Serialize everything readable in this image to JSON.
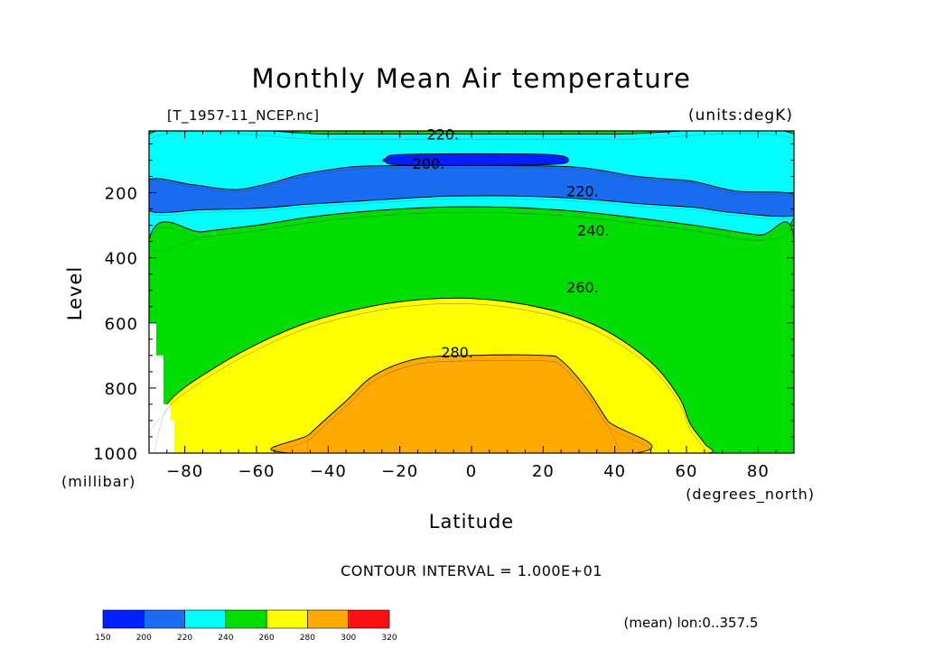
{
  "chart_data": {
    "type": "contour",
    "title": "Monthly Mean Air temperature",
    "subtitle_left": "[T_1957-11_NCEP.nc]",
    "units_label": "(units:degK)",
    "xlabel": "Latitude",
    "x_units": "(degrees_north)",
    "ylabel": "Level",
    "y_units": "(millibar)",
    "xlim": [
      -90,
      90
    ],
    "ylim": [
      1000,
      10
    ],
    "y_inverted": true,
    "x_ticks": [
      -80,
      -60,
      -40,
      -20,
      0,
      20,
      40,
      60,
      80
    ],
    "x_tick_labels": [
      "−80",
      "−60",
      "−40",
      "−20",
      "0",
      "20",
      "40",
      "60",
      "80"
    ],
    "y_ticks": [
      200,
      400,
      600,
      800,
      1000
    ],
    "y_tick_labels": [
      "200",
      "400",
      "600",
      "800",
      "1000"
    ],
    "contour_interval_text": "CONTOUR INTERVAL = 1.000E+01",
    "footnote": "(mean) lon:0..357.5",
    "colorbar": {
      "levels": [
        150,
        200,
        220,
        240,
        260,
        280,
        300,
        320
      ],
      "colors": [
        "#0020ff",
        "#1a6cf0",
        "#00ffff",
        "#00dd00",
        "#ffff00",
        "#ffaa00",
        "#ff1010"
      ]
    },
    "fill_bands": [
      {
        "level_min": 150,
        "level_max": 200,
        "color": "#0020ff",
        "boundary": [
          [
            -24,
            95
          ],
          [
            -18,
            82
          ],
          [
            20,
            82
          ],
          [
            27,
            100
          ],
          [
            20,
            114
          ],
          [
            -18,
            115
          ],
          [
            -24,
            105
          ]
        ]
      },
      {
        "level_min": 200,
        "level_max": 220,
        "color": "#1a6cf0",
        "boundary": [
          [
            -90,
            160
          ],
          [
            -78,
            175
          ],
          [
            -66,
            190
          ],
          [
            -56,
            170
          ],
          [
            -48,
            145
          ],
          [
            -40,
            130
          ],
          [
            -30,
            118
          ],
          [
            -10,
            117
          ],
          [
            10,
            117
          ],
          [
            30,
            122
          ],
          [
            45,
            148
          ],
          [
            55,
            158
          ],
          [
            62,
            165
          ],
          [
            74,
            195
          ],
          [
            90,
            205
          ],
          [
            90,
            270
          ],
          [
            72,
            260
          ],
          [
            62,
            245
          ],
          [
            48,
            235
          ],
          [
            38,
            225
          ],
          [
            25,
            215
          ],
          [
            10,
            210
          ],
          [
            0,
            210
          ],
          [
            -10,
            212
          ],
          [
            -30,
            225
          ],
          [
            -45,
            235
          ],
          [
            -60,
            248
          ],
          [
            -75,
            252
          ],
          [
            -90,
            255
          ]
        ]
      },
      {
        "level_min": 220,
        "level_max": 240,
        "color": "#00ffff",
        "boundary": [
          [
            -90,
            20
          ],
          [
            -40,
            20
          ],
          [
            0,
            20
          ],
          [
            40,
            20
          ],
          [
            90,
            20
          ],
          [
            90,
            275
          ],
          [
            80,
            330
          ],
          [
            62,
            300
          ],
          [
            48,
            280
          ],
          [
            30,
            258
          ],
          [
            10,
            245
          ],
          [
            -10,
            245
          ],
          [
            -30,
            258
          ],
          [
            -45,
            275
          ],
          [
            -60,
            300
          ],
          [
            -75,
            320
          ],
          [
            -90,
            345
          ]
        ]
      },
      {
        "level_min": 240,
        "level_max": 260,
        "color": "#00dd00",
        "boundary": [
          [
            -90,
            345
          ],
          [
            -75,
            320
          ],
          [
            -60,
            300
          ],
          [
            -45,
            275
          ],
          [
            -30,
            258
          ],
          [
            -10,
            245
          ],
          [
            10,
            245
          ],
          [
            30,
            258
          ],
          [
            48,
            280
          ],
          [
            62,
            300
          ],
          [
            80,
            330
          ],
          [
            90,
            340
          ],
          [
            90,
            1000
          ],
          [
            66,
            1000
          ],
          [
            65,
            970
          ],
          [
            61,
            910
          ],
          [
            58,
            830
          ],
          [
            50,
            720
          ],
          [
            36,
            615
          ],
          [
            20,
            555
          ],
          [
            0,
            525
          ],
          [
            -20,
            535
          ],
          [
            -40,
            580
          ],
          [
            -55,
            640
          ],
          [
            -72,
            740
          ],
          [
            -85,
            850
          ],
          [
            -90,
            1000
          ]
        ]
      },
      {
        "level_min": 260,
        "level_max": 280,
        "color": "#ffff00",
        "boundary": [
          [
            -90,
            1000
          ],
          [
            -85,
            850
          ],
          [
            -72,
            740
          ],
          [
            -55,
            640
          ],
          [
            -40,
            580
          ],
          [
            -20,
            535
          ],
          [
            0,
            525
          ],
          [
            20,
            555
          ],
          [
            36,
            615
          ],
          [
            50,
            720
          ],
          [
            58,
            830
          ],
          [
            61,
            910
          ],
          [
            65,
            970
          ],
          [
            66,
            1000
          ],
          [
            45,
            1000
          ],
          [
            38,
            900
          ],
          [
            32,
            800
          ],
          [
            25,
            715
          ],
          [
            20,
            700
          ],
          [
            0,
            700
          ],
          [
            -15,
            710
          ],
          [
            -27,
            760
          ],
          [
            -35,
            840
          ],
          [
            -45,
            940
          ],
          [
            -50,
            1000
          ]
        ]
      },
      {
        "level_min": 280,
        "level_max": 300,
        "color": "#ffaa00",
        "boundary": [
          [
            -50,
            1000
          ],
          [
            -45,
            940
          ],
          [
            -35,
            840
          ],
          [
            -27,
            760
          ],
          [
            -15,
            710
          ],
          [
            0,
            700
          ],
          [
            20,
            700
          ],
          [
            25,
            715
          ],
          [
            32,
            800
          ],
          [
            38,
            900
          ],
          [
            45,
            1000
          ]
        ]
      }
    ],
    "contour_labels": [
      {
        "text": "220.",
        "lat": -8,
        "lev": 20
      },
      {
        "text": "200.",
        "lat": -12,
        "lev": 110
      },
      {
        "text": "220.",
        "lat": 31,
        "lev": 195
      },
      {
        "text": "240.",
        "lat": 34,
        "lev": 315
      },
      {
        "text": "260.",
        "lat": 31,
        "lev": 490
      },
      {
        "text": "280.",
        "lat": -4,
        "lev": 690
      }
    ],
    "missing_data_region": [
      [
        -90,
        600
      ],
      [
        -88,
        600
      ],
      [
        -88,
        700
      ],
      [
        -86,
        700
      ],
      [
        -86,
        780
      ],
      [
        -86,
        850
      ],
      [
        -84,
        850
      ],
      [
        -84,
        900
      ],
      [
        -83,
        900
      ],
      [
        -83,
        1000
      ],
      [
        -90,
        1000
      ]
    ]
  }
}
